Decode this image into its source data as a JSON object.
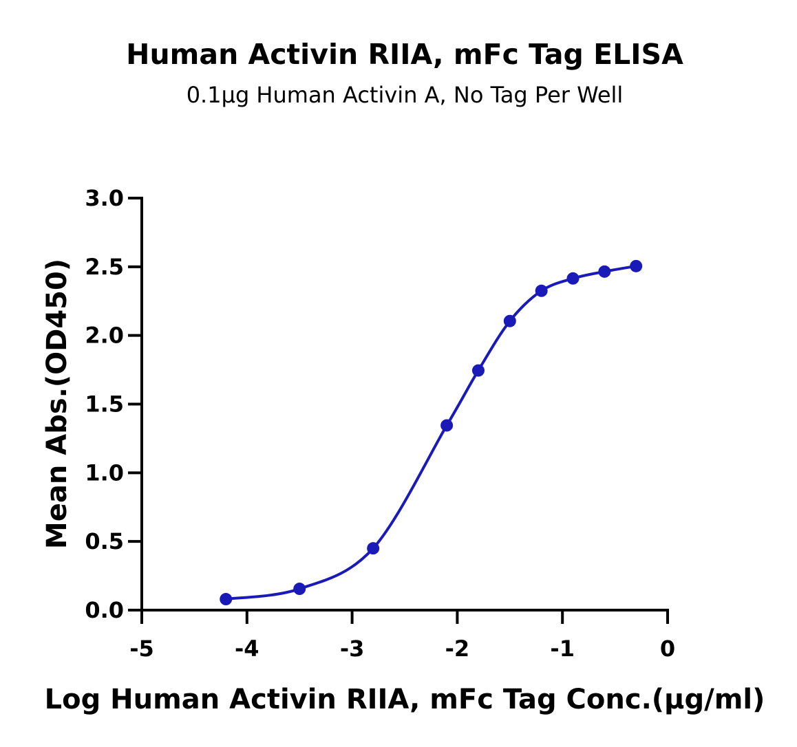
{
  "chart_data": {
    "type": "scatter",
    "title": "Human Activin RIIA, mFc Tag ELISA",
    "subtitle": "0.1μg Human Activin A, No Tag Per Well",
    "xlabel": "Log Human Activin RIIA, mFc Tag Conc.(μg/ml)",
    "ylabel": "Mean Abs.(OD450)",
    "xlim": [
      -5,
      0
    ],
    "ylim": [
      0,
      3.0
    ],
    "xticks": [
      "-5",
      "-4",
      "-3",
      "-2",
      "-1",
      "0"
    ],
    "yticks": [
      "0.0",
      "0.5",
      "1.0",
      "1.5",
      "2.0",
      "2.5",
      "3.0"
    ],
    "grid": false,
    "color": "#1a1ab8",
    "series": [
      {
        "x": [
          -4.2,
          -3.5,
          -2.8,
          -2.1,
          -1.8,
          -1.5,
          -1.2,
          -0.9,
          -0.6,
          -0.3
        ],
        "y": [
          0.08,
          0.155,
          0.45,
          1.345,
          1.745,
          2.105,
          2.325,
          2.415,
          2.465,
          2.505
        ],
        "fit_curve": true
      }
    ]
  }
}
